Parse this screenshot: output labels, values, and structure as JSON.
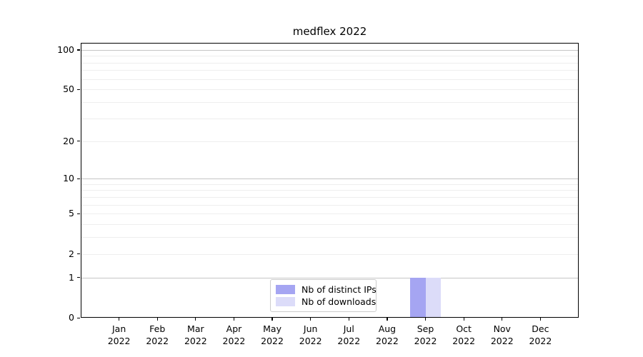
{
  "chart_data": {
    "type": "bar",
    "title": "medflex 2022",
    "categories": [
      "Jan",
      "Feb",
      "Mar",
      "Apr",
      "May",
      "Jun",
      "Jul",
      "Aug",
      "Sep",
      "Oct",
      "Nov",
      "Dec"
    ],
    "year": "2022",
    "series": [
      {
        "name": "Nb of distinct IPs",
        "color": "#a5a5f2",
        "values": [
          0,
          0,
          0,
          0,
          0,
          0,
          0,
          0,
          1,
          0,
          0,
          0
        ]
      },
      {
        "name": "Nb of downloads",
        "color": "#dcdcf9",
        "values": [
          0,
          0,
          0,
          0,
          0,
          0,
          0,
          0,
          1,
          0,
          0,
          0
        ]
      }
    ],
    "y_axis": {
      "scale": "log1p",
      "ticks": [
        0,
        1,
        2,
        5,
        10,
        20,
        50,
        100
      ],
      "top_value": 113,
      "gridlines": {
        "major": [
          1,
          10,
          100
        ],
        "minor": [
          2,
          3,
          4,
          5,
          6,
          7,
          8,
          9,
          20,
          30,
          40,
          50,
          60,
          70,
          80,
          90
        ]
      }
    },
    "x_axis": {
      "tick_count": 12
    },
    "legend": {
      "position": "lower-center"
    },
    "grid": true,
    "colors": {
      "major_gridline": "#c5c5c5",
      "minor_gridline": "#eeeeee",
      "spine": "#000000",
      "background": "#ffffff"
    }
  }
}
